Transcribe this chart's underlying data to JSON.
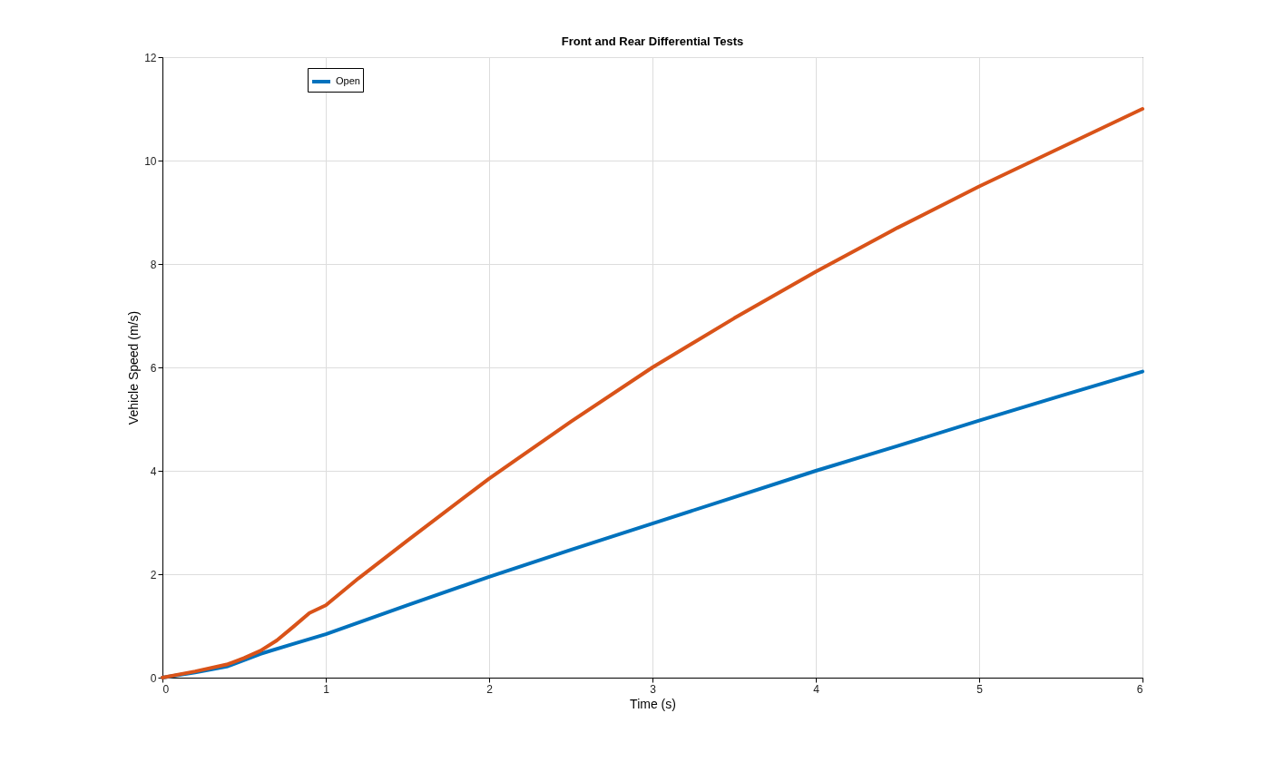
{
  "chart_data": {
    "type": "line",
    "title": "Front and Rear Differential Tests",
    "xlabel": "Time (s)",
    "ylabel": "Vehicle Speed (m/s)",
    "xlim": [
      0,
      6
    ],
    "xticks": [
      0,
      1,
      2,
      3,
      4,
      5,
      6
    ],
    "ylim": [
      0,
      12
    ],
    "yticks": [
      0,
      2,
      4,
      6,
      8,
      10,
      12
    ],
    "grid": true,
    "legend": "top left",
    "series": [
      {
        "name": "Open",
        "color": "#0072bd",
        "x": [
          0,
          0.2,
          0.4,
          0.6,
          0.8,
          1,
          1.5,
          2,
          2.5,
          3,
          3.5,
          4,
          4.5,
          5,
          5.5,
          6
        ],
        "values": [
          0,
          0.1,
          0.22,
          0.46,
          0.65,
          0.84,
          1.4,
          1.95,
          2.47,
          2.98,
          3.49,
          4.0,
          4.48,
          4.97,
          5.45,
          5.92
        ]
      },
      {
        "color": "#d95319",
        "x": [
          0,
          0.2,
          0.4,
          0.5,
          0.6,
          0.7,
          0.8,
          0.9,
          1,
          1.2,
          1.5,
          2,
          2.5,
          3,
          3.5,
          4,
          4.5,
          5,
          5.5,
          6
        ],
        "values": [
          0,
          0.12,
          0.26,
          0.38,
          0.52,
          0.72,
          0.98,
          1.25,
          1.4,
          1.92,
          2.65,
          3.85,
          4.95,
          6.0,
          6.95,
          7.85,
          8.7,
          9.5,
          10.25,
          11.0
        ]
      }
    ]
  }
}
